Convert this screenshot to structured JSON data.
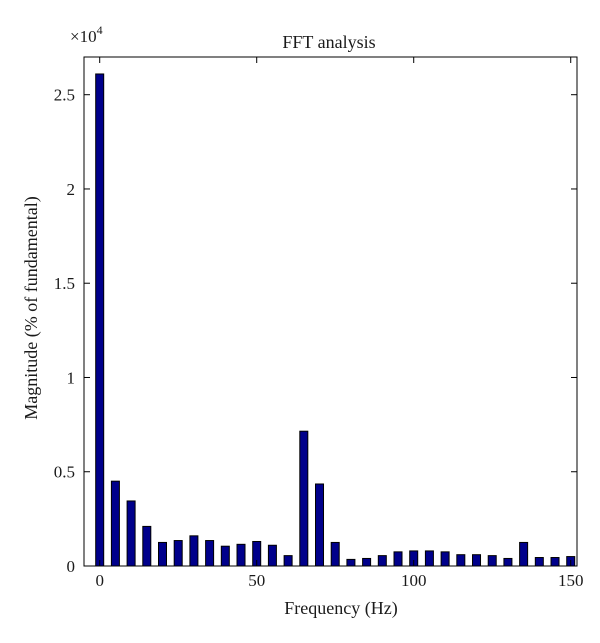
{
  "chart_data": {
    "type": "bar",
    "title": "FFT analysis",
    "xlabel": "Frequency (Hz)",
    "ylabel": "Magnitude (% of fundamental)",
    "y_multiplier_label": "×10",
    "y_multiplier_exponent": "4",
    "xlim": [
      -5,
      152
    ],
    "ylim": [
      0,
      2.7
    ],
    "x_ticks": [
      0,
      50,
      100,
      150
    ],
    "x_tick_labels": [
      "0",
      "50",
      "100",
      "150"
    ],
    "y_ticks": [
      0,
      0.5,
      1,
      1.5,
      2,
      2.5
    ],
    "y_tick_labels": [
      "0",
      "0.5",
      "1",
      "1.5",
      "2",
      "2.5"
    ],
    "x": [
      0,
      5,
      10,
      15,
      20,
      25,
      30,
      35,
      40,
      45,
      50,
      55,
      60,
      65,
      70,
      75,
      80,
      85,
      90,
      95,
      100,
      105,
      110,
      115,
      120,
      125,
      130,
      135,
      140,
      145,
      150
    ],
    "values": [
      2.61,
      0.45,
      0.345,
      0.21,
      0.125,
      0.135,
      0.16,
      0.135,
      0.105,
      0.115,
      0.13,
      0.11,
      0.055,
      0.715,
      0.435,
      0.125,
      0.035,
      0.04,
      0.055,
      0.075,
      0.08,
      0.08,
      0.075,
      0.06,
      0.06,
      0.055,
      0.04,
      0.125,
      0.045,
      0.045,
      0.05
    ],
    "bar_color": "#00008b",
    "title_color": "#0a0a8c",
    "grid": false
  }
}
